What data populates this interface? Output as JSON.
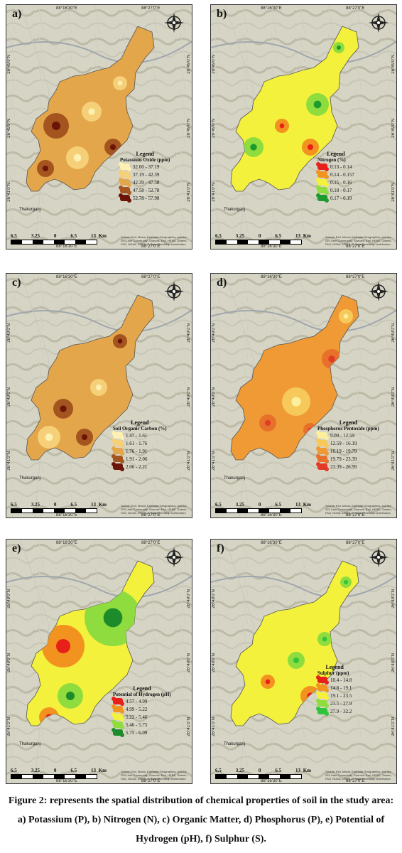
{
  "coords": {
    "lon_left": "88°16'30\"E",
    "lon_right": "88°27'0\"E",
    "lat_top": "26°49'0\"N",
    "lat_mid": "26°49'0\"N",
    "lat_bottom": "26°41'0\"N"
  },
  "town": "Thakurganj",
  "scale": {
    "ticks": [
      "6.5",
      "3.25",
      "0",
      "6.5",
      "13"
    ],
    "unit": "Km"
  },
  "credit": "Source: Esri, Maxar, Earthstar Geographics, and the GIS User Community; Sources: Esri, HERE, Garmin, FAO, NOAA, USGS, © OpenStreetMap contributors",
  "panels": [
    {
      "id": "a",
      "label": "a)",
      "legend_title": "Legend",
      "legend_sub": "Potassium Oxide (ppm)",
      "classes": [
        {
          "range": "32.00 - 37.19",
          "color": "#fdf0b0"
        },
        {
          "range": "37.19 - 42.39",
          "color": "#f6cf79"
        },
        {
          "range": "42.39 - 47.58",
          "color": "#e4a64a"
        },
        {
          "range": "47.58 - 52.78",
          "color": "#a4541e"
        },
        {
          "range": "52.78 - 57.98",
          "color": "#6b1408"
        }
      ]
    },
    {
      "id": "b",
      "label": "b)",
      "legend_title": "Legend",
      "legend_sub": "Nitrogen (%)",
      "classes": [
        {
          "range": "0.13 - 0.14",
          "color": "#e8201a"
        },
        {
          "range": "0.14 - 0.157",
          "color": "#f2931f"
        },
        {
          "range": "0.15 - 0.16",
          "color": "#f4f13c"
        },
        {
          "range": "0.18 - 0.17",
          "color": "#8fdc3f"
        },
        {
          "range": "0.17 - 0.19",
          "color": "#1d9b2d"
        }
      ]
    },
    {
      "id": "c",
      "label": "c)",
      "legend_title": "Legend",
      "legend_sub": "Soil Organic Carbon (%)",
      "classes": [
        {
          "range": "1.47 - 1.61",
          "color": "#fdf0b0"
        },
        {
          "range": "1.61 - 1.76",
          "color": "#f6cf79"
        },
        {
          "range": "1.76 - 1.91",
          "color": "#e4a64a"
        },
        {
          "range": "1.91 - 2.06",
          "color": "#a4541e"
        },
        {
          "range": "2.06 - 2.21",
          "color": "#6b1408"
        }
      ]
    },
    {
      "id": "d",
      "label": "d)",
      "legend_title": "Legend",
      "legend_sub": "Phosphorus Pentoxide (ppm)",
      "classes": [
        {
          "range": "9.00 - 12.59",
          "color": "#fcef9e"
        },
        {
          "range": "12.59 - 16.19",
          "color": "#f7c95a"
        },
        {
          "range": "16.19 - 19.79",
          "color": "#ef9a34"
        },
        {
          "range": "19.79 - 23.39",
          "color": "#e7702a"
        },
        {
          "range": "23.39 - 26.99",
          "color": "#e23a26"
        }
      ]
    },
    {
      "id": "e",
      "label": "e)",
      "legend_title": "Legend",
      "legend_sub": "Potential of Hydrogen (pH)",
      "classes": [
        {
          "range": "4.57 - 4.99",
          "color": "#e8201a"
        },
        {
          "range": "4.99 - 5.22",
          "color": "#f2931f"
        },
        {
          "range": "5.22 - 5.46",
          "color": "#f4f13c"
        },
        {
          "range": "5.46 - 5.75",
          "color": "#8fdc3f"
        },
        {
          "range": "5.75 - 6.09",
          "color": "#1d8b2a"
        }
      ]
    },
    {
      "id": "f",
      "label": "f)",
      "legend_title": "Legend",
      "legend_sub": "Sulphur (ppm)",
      "classes": [
        {
          "range": "10.4 - 14.8",
          "color": "#e8201a"
        },
        {
          "range": "14.8 - 19.1",
          "color": "#f2931f"
        },
        {
          "range": "19.1 - 23.5",
          "color": "#f4f13c"
        },
        {
          "range": "23.5 - 27.9",
          "color": "#8fdc3f"
        },
        {
          "range": "27.9 - 32.2",
          "color": "#2fc43a"
        }
      ]
    }
  ],
  "caption": "Figure 2: represents the spatial distribution of chemical properties of soil in the study area: a) Potassium (P), b) Nitrogen (N), c) Organic Matter, d) Phosphorus (P), e) Potential of Hydrogen (pH), f) Sulphur (S)."
}
